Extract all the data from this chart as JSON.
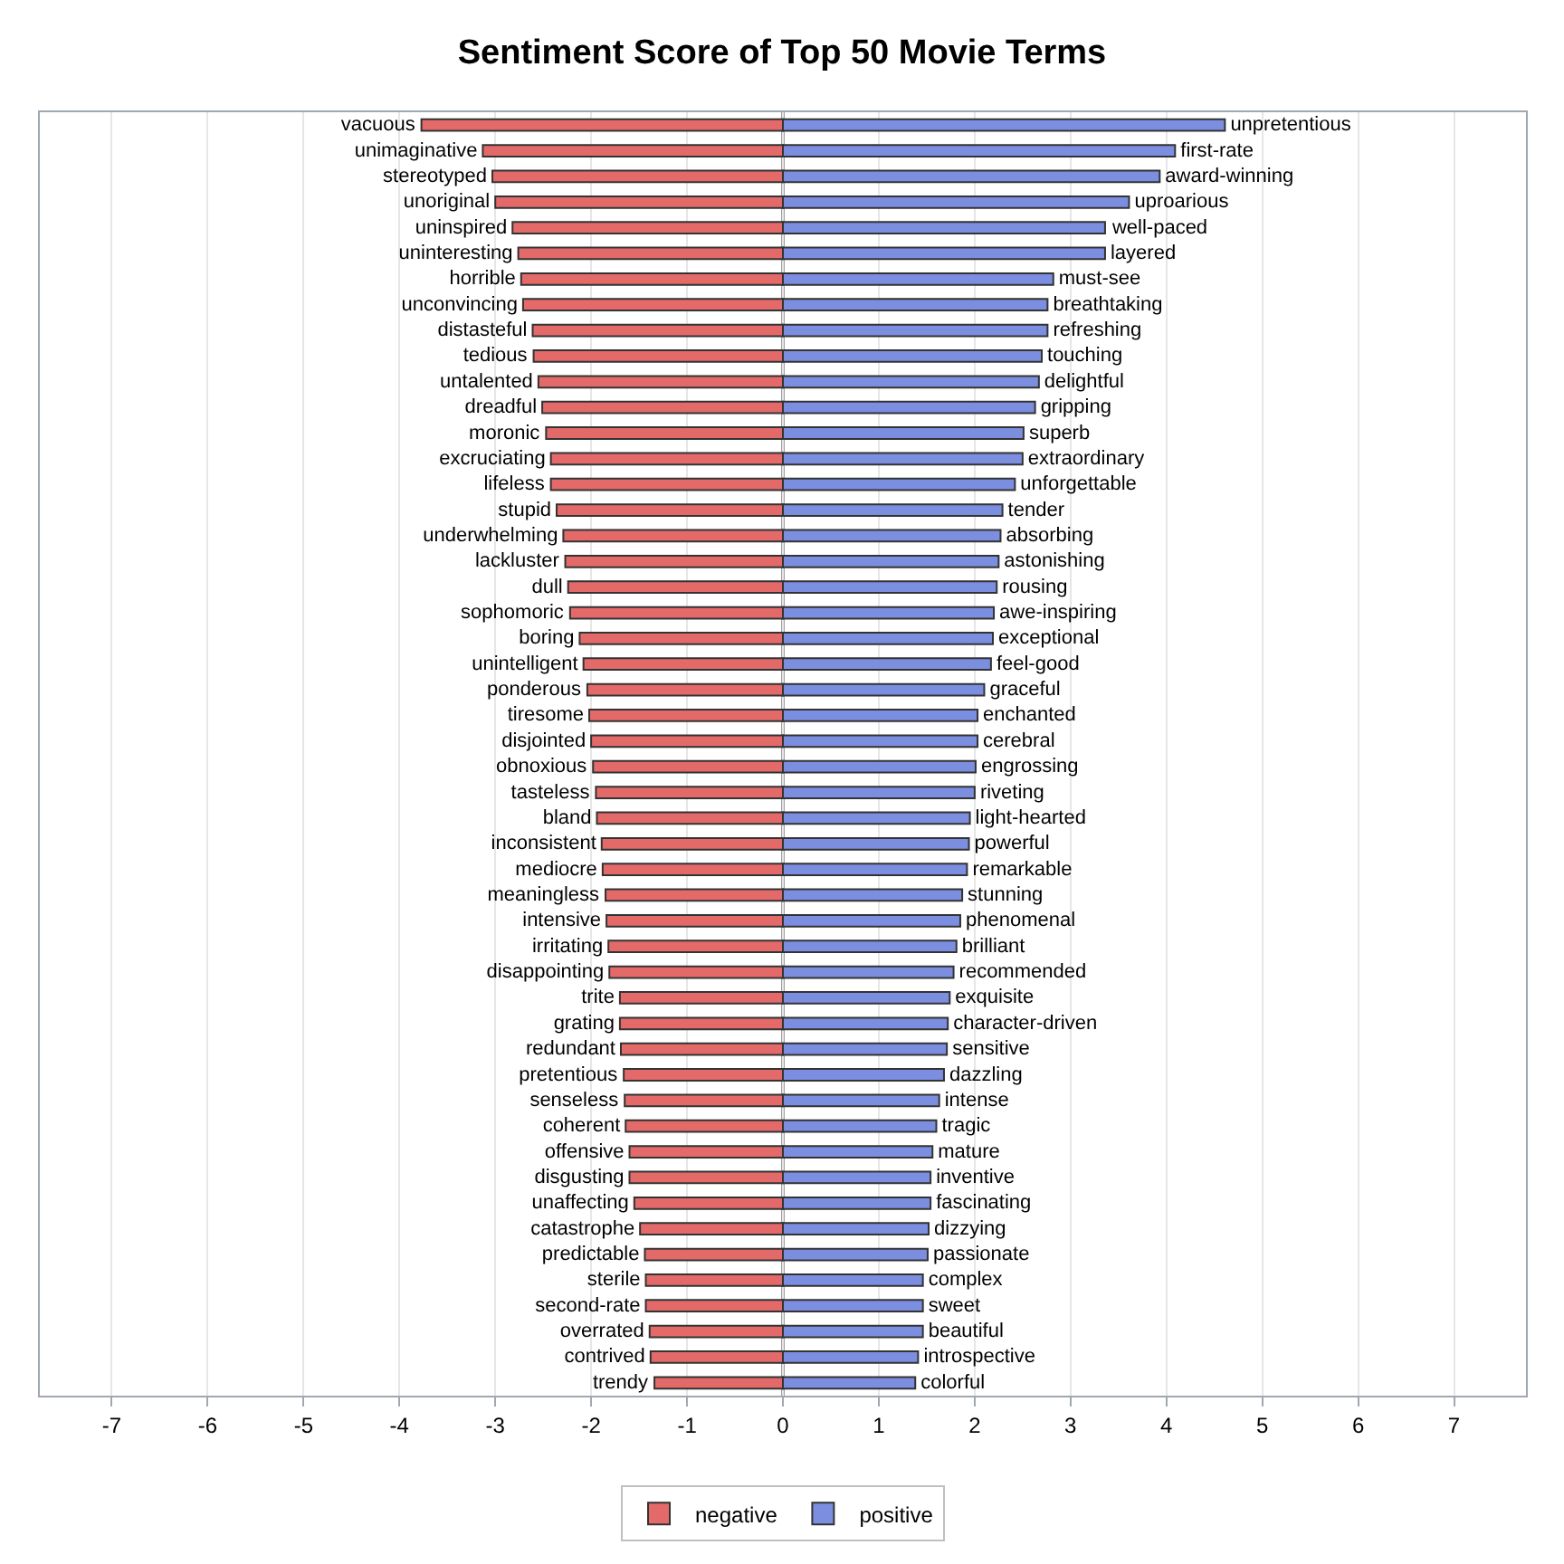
{
  "chart_data": {
    "type": "bar",
    "orientation": "horizontal",
    "title": "Sentiment Score of Top 50 Movie Terms",
    "categories": [
      null,
      null,
      null,
      null,
      null,
      null,
      null,
      null,
      null,
      null,
      null,
      null,
      null,
      null,
      null,
      null,
      null,
      null,
      null,
      null,
      null,
      null,
      null,
      null,
      null,
      null,
      null,
      null,
      null,
      null,
      null,
      null,
      null,
      null,
      null,
      null,
      null,
      null,
      null,
      null,
      null,
      null,
      null,
      null,
      null,
      null,
      null,
      null,
      null,
      null
    ],
    "series": [
      {
        "name": "negative",
        "color": "#e46a6a",
        "values": [
          -3.77,
          -3.13,
          -3.03,
          -3.0,
          -2.82,
          -2.76,
          -2.73,
          -2.71,
          -2.61,
          -2.6,
          -2.55,
          -2.51,
          -2.47,
          -2.42,
          -2.42,
          -2.36,
          -2.29,
          -2.27,
          -2.24,
          -2.22,
          -2.12,
          -2.08,
          -2.04,
          -2.02,
          -2.0,
          -1.98,
          -1.95,
          -1.94,
          -1.89,
          -1.88,
          -1.85,
          -1.84,
          -1.82,
          -1.81,
          -1.7,
          -1.7,
          -1.69,
          -1.66,
          -1.65,
          -1.64,
          -1.6,
          -1.6,
          -1.55,
          -1.49,
          -1.44,
          -1.43,
          -1.43,
          -1.39,
          -1.38,
          -1.34
        ],
        "value_labels": [
          "vacuous",
          "unimaginative",
          "stereotyped",
          "unoriginal",
          "uninspired",
          "uninteresting",
          "horrible",
          "unconvincing",
          "distasteful",
          "tedious",
          "untalented",
          "dreadful",
          "moronic",
          "excruciating",
          "lifeless",
          "stupid",
          "underwhelming",
          "lackluster",
          "dull",
          "sophomoric",
          "boring",
          "unintelligent",
          "ponderous",
          "tiresome",
          "disjointed",
          "obnoxious",
          "tasteless",
          "bland",
          "inconsistent",
          "mediocre",
          "meaningless",
          "intensive",
          "irritating",
          "disappointing",
          "trite",
          "grating",
          "redundant",
          "pretentious",
          "senseless",
          "coherent",
          "offensive",
          "disgusting",
          "unaffecting",
          "catastrophe",
          "predictable",
          "sterile",
          "second-rate",
          "overrated",
          "contrived",
          "trendy"
        ]
      },
      {
        "name": "positive",
        "color": "#7c8edf",
        "values": [
          4.61,
          4.09,
          3.93,
          3.61,
          3.36,
          3.36,
          2.82,
          2.76,
          2.76,
          2.7,
          2.67,
          2.63,
          2.51,
          2.5,
          2.42,
          2.29,
          2.27,
          2.25,
          2.23,
          2.2,
          2.19,
          2.17,
          2.1,
          2.03,
          2.03,
          2.01,
          2.0,
          1.95,
          1.94,
          1.92,
          1.87,
          1.85,
          1.81,
          1.78,
          1.74,
          1.72,
          1.71,
          1.68,
          1.63,
          1.6,
          1.56,
          1.54,
          1.54,
          1.52,
          1.51,
          1.46,
          1.46,
          1.46,
          1.41,
          1.38
        ],
        "value_labels": [
          "unpretentious",
          "first-rate",
          "award-winning",
          "uproarious",
          "well-paced",
          "layered",
          "must-see",
          "breathtaking",
          "refreshing",
          "touching",
          "delightful",
          "gripping",
          "superb",
          "extraordinary",
          "unforgettable",
          "tender",
          "absorbing",
          "astonishing",
          "rousing",
          "awe-inspiring",
          "exceptional",
          "feel-good",
          "graceful",
          "enchanted",
          "cerebral",
          "engrossing",
          "riveting",
          "light-hearted",
          "powerful",
          "remarkable",
          "stunning",
          "phenomenal",
          "brilliant",
          "recommended",
          "exquisite",
          "character-driven",
          "sensitive",
          "dazzling",
          "intense",
          "tragic",
          "mature",
          "inventive",
          "fascinating",
          "dizzying",
          "passionate",
          "complex",
          "sweet",
          "beautiful",
          "introspective",
          "colorful"
        ]
      }
    ],
    "xlim": [
      -7.75,
      7.75
    ],
    "xticks": [
      -7,
      -6,
      -5,
      -4,
      -3,
      -2,
      -1,
      0,
      1,
      2,
      3,
      4,
      5,
      6,
      7
    ],
    "ref_lines": [
      {
        "axis": "x",
        "value": 0,
        "color": "#a0a0a0"
      }
    ],
    "grid": "x",
    "legend": "bottom",
    "tick_labels": "x",
    "stacked": true
  }
}
